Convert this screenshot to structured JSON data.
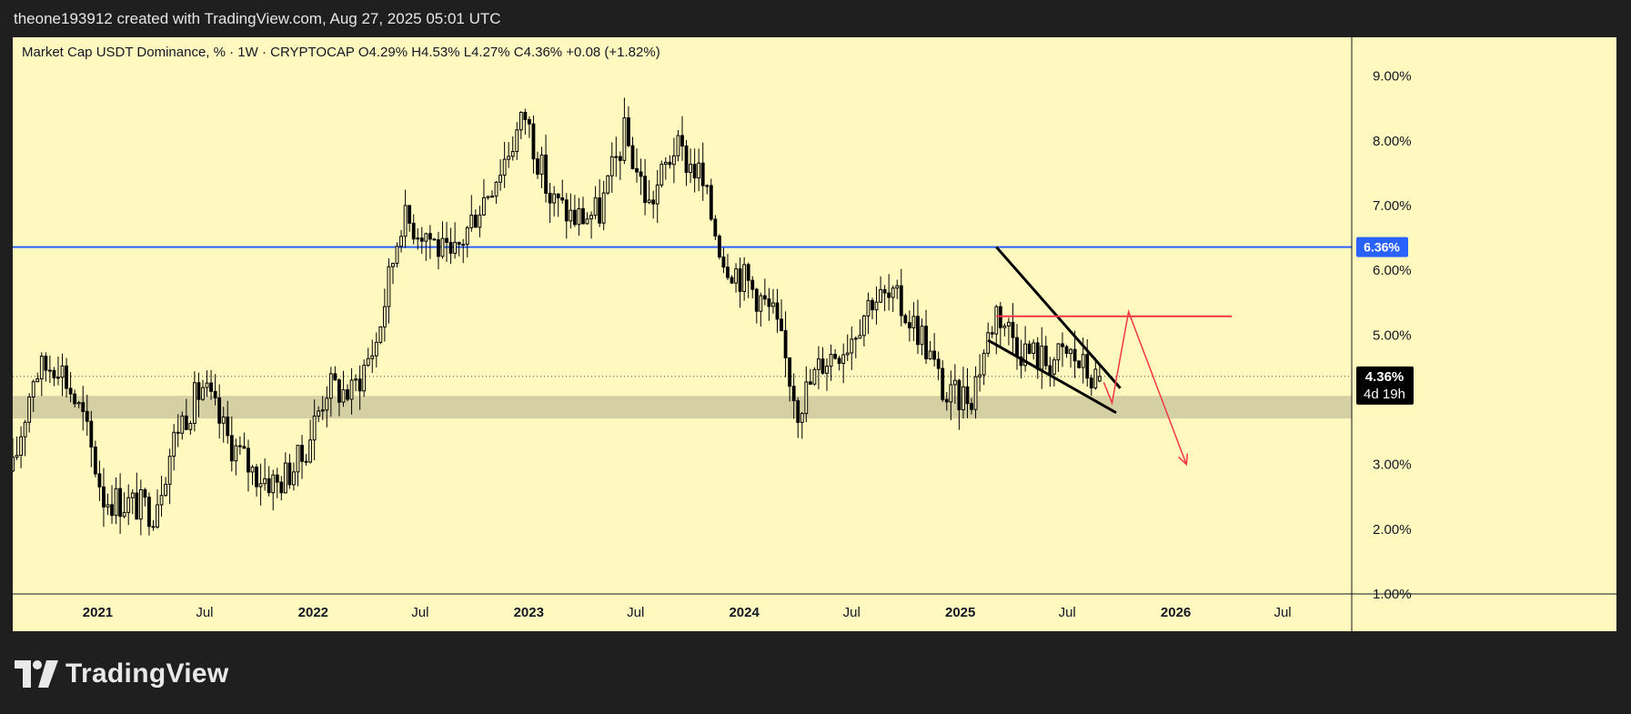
{
  "header": {
    "attribution": "theone193912 created with TradingView.com, Aug 27, 2025 05:01 UTC"
  },
  "legend": {
    "text": "Market Cap USDT Dominance, % · 1W · CRYPTOCAP  O4.29%  H4.53%  L4.27%  C4.36%  +0.08 (+1.82%)"
  },
  "footer": {
    "brand": "TradingView",
    "logo_icon": "tradingview-logo-icon"
  },
  "price_badge": {
    "value": "4.36%",
    "countdown": "4d 19h"
  },
  "level_badge": {
    "value": "6.36%"
  },
  "colors": {
    "background": "#fff9c0",
    "frame": "#1f1f1f",
    "support_zone": "#d3cca2",
    "resistance_line": "#2962ff",
    "projection": "#f23645",
    "candles": "#000000"
  },
  "chart_data": {
    "type": "candlestick",
    "title": "Market Cap USDT Dominance, % · 1W · CRYPTOCAP",
    "interval": "1W",
    "unit": "%",
    "y_ticks": [
      "9.00%",
      "8.00%",
      "7.00%",
      "6.00%",
      "5.00%",
      "3.00%",
      "2.00%",
      "1.00%"
    ],
    "ylim": [
      1.0,
      9.6
    ],
    "x_ticks": [
      "2021",
      "Jul",
      "2022",
      "Jul",
      "2023",
      "Jul",
      "2024",
      "Jul",
      "2025",
      "Jul",
      "2026",
      "Jul"
    ],
    "x_range": [
      "2020-08-10",
      "2026-10-26"
    ],
    "last_bar": {
      "open": 4.29,
      "high": 4.53,
      "low": 4.27,
      "close": 4.36,
      "change": 0.08,
      "change_pct": 1.82
    },
    "approx_close_path": [
      [
        "2020-08-10",
        2.9
      ],
      [
        "2020-09-14",
        4.4
      ],
      [
        "2020-10-26",
        4.6
      ],
      [
        "2020-12-07",
        3.7
      ],
      [
        "2021-01-11",
        2.5
      ],
      [
        "2021-02-22",
        2.4
      ],
      [
        "2021-04-05",
        2.3
      ],
      [
        "2021-05-17",
        3.6
      ],
      [
        "2021-06-28",
        4.2
      ],
      [
        "2021-08-09",
        3.4
      ],
      [
        "2021-09-20",
        2.9
      ],
      [
        "2021-11-01",
        2.7
      ],
      [
        "2021-12-13",
        3.1
      ],
      [
        "2022-01-24",
        4.2
      ],
      [
        "2022-03-07",
        4.1
      ],
      [
        "2022-04-18",
        4.9
      ],
      [
        "2022-05-30",
        6.8
      ],
      [
        "2022-07-11",
        6.6
      ],
      [
        "2022-08-22",
        6.1
      ],
      [
        "2022-10-03",
        6.9
      ],
      [
        "2022-11-14",
        7.6
      ],
      [
        "2022-12-26",
        8.4
      ],
      [
        "2023-02-06",
        7.1
      ],
      [
        "2023-03-20",
        6.8
      ],
      [
        "2023-05-01",
        6.9
      ],
      [
        "2023-06-12",
        8.1
      ],
      [
        "2023-07-24",
        7.0
      ],
      [
        "2023-09-04",
        7.9
      ],
      [
        "2023-10-16",
        7.5
      ],
      [
        "2023-11-27",
        6.2
      ],
      [
        "2024-01-08",
        5.8
      ],
      [
        "2024-02-19",
        5.3
      ],
      [
        "2024-04-01",
        3.9
      ],
      [
        "2024-05-13",
        4.6
      ],
      [
        "2024-06-24",
        4.9
      ],
      [
        "2024-08-05",
        5.6
      ],
      [
        "2024-09-16",
        5.5
      ],
      [
        "2024-10-28",
        5.0
      ],
      [
        "2024-12-09",
        4.0
      ],
      [
        "2025-01-20",
        4.1
      ],
      [
        "2025-03-03",
        5.4
      ],
      [
        "2025-04-14",
        4.8
      ],
      [
        "2025-05-26",
        4.6
      ],
      [
        "2025-07-07",
        4.7
      ],
      [
        "2025-08-18",
        4.29
      ],
      [
        "2025-08-25",
        4.36
      ]
    ],
    "annotations": {
      "support_zone": [
        3.71,
        4.06
      ],
      "resistance_level": 6.36,
      "current_price_line": 4.36,
      "red_horizontal": 5.29,
      "falling_wedge": {
        "upper": [
          [
            "2025-03-03",
            6.36
          ],
          [
            "2025-09-29",
            4.18
          ]
        ],
        "lower": [
          [
            "2025-02-17",
            4.92
          ],
          [
            "2025-09-22",
            3.8
          ]
        ]
      },
      "projection_path": [
        [
          "2025-09-01",
          4.27
        ],
        [
          "2025-09-15",
          3.95
        ],
        [
          "2025-10-13",
          5.36
        ],
        [
          "2026-01-19",
          3.0
        ]
      ]
    }
  }
}
